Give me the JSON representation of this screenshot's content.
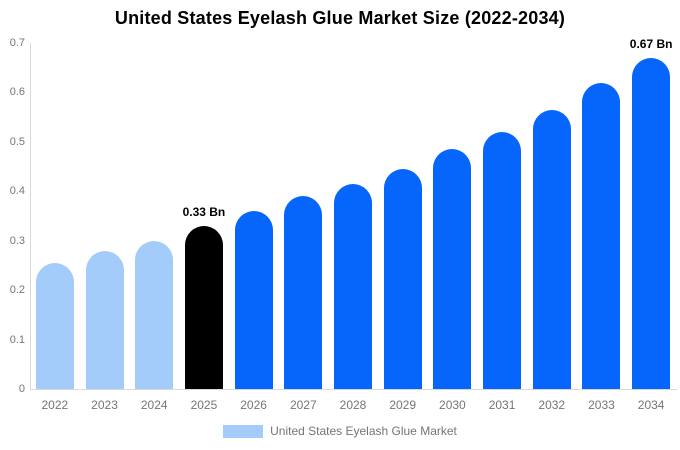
{
  "title": "United States Eyelash Glue Market Size (2022-2034)",
  "legend": {
    "label": "United States Eyelash Glue Market"
  },
  "colors": {
    "historical": "#a3ccfa",
    "highlight": "#000000",
    "forecast": "#0666fb",
    "axis_line": "#d9d9d9",
    "tick_text": "#757575",
    "annotation_text": "#000000"
  },
  "chart_data": {
    "type": "bar",
    "title": "United States Eyelash Glue Market Size (2022-2034)",
    "xlabel": "",
    "ylabel": "",
    "categories": [
      "2022",
      "2023",
      "2024",
      "2025",
      "2026",
      "2027",
      "2028",
      "2029",
      "2030",
      "2031",
      "2032",
      "2033",
      "2034"
    ],
    "values": [
      0.255,
      0.28,
      0.3,
      0.33,
      0.36,
      0.39,
      0.415,
      0.445,
      0.485,
      0.52,
      0.565,
      0.62,
      0.67
    ],
    "bar_roles": [
      "historical",
      "historical",
      "historical",
      "highlight",
      "forecast",
      "forecast",
      "forecast",
      "forecast",
      "forecast",
      "forecast",
      "forecast",
      "forecast",
      "forecast"
    ],
    "data_labels": [
      {
        "category": "2025",
        "text": "0.33 Bn"
      },
      {
        "category": "2034",
        "text": "0.67 Bn"
      }
    ],
    "y_tick_labels": [
      "0",
      "0.1",
      "0.2",
      "0.3",
      "0.4",
      "0.5",
      "0.6",
      "0.7"
    ],
    "y_ticks": [
      0,
      0.1,
      0.2,
      0.3,
      0.4,
      0.5,
      0.6,
      0.7
    ],
    "ylim": [
      0,
      0.7
    ],
    "grid": false,
    "legend_position": "bottom",
    "legend_entries": [
      "United States Eyelash Glue Market"
    ]
  }
}
